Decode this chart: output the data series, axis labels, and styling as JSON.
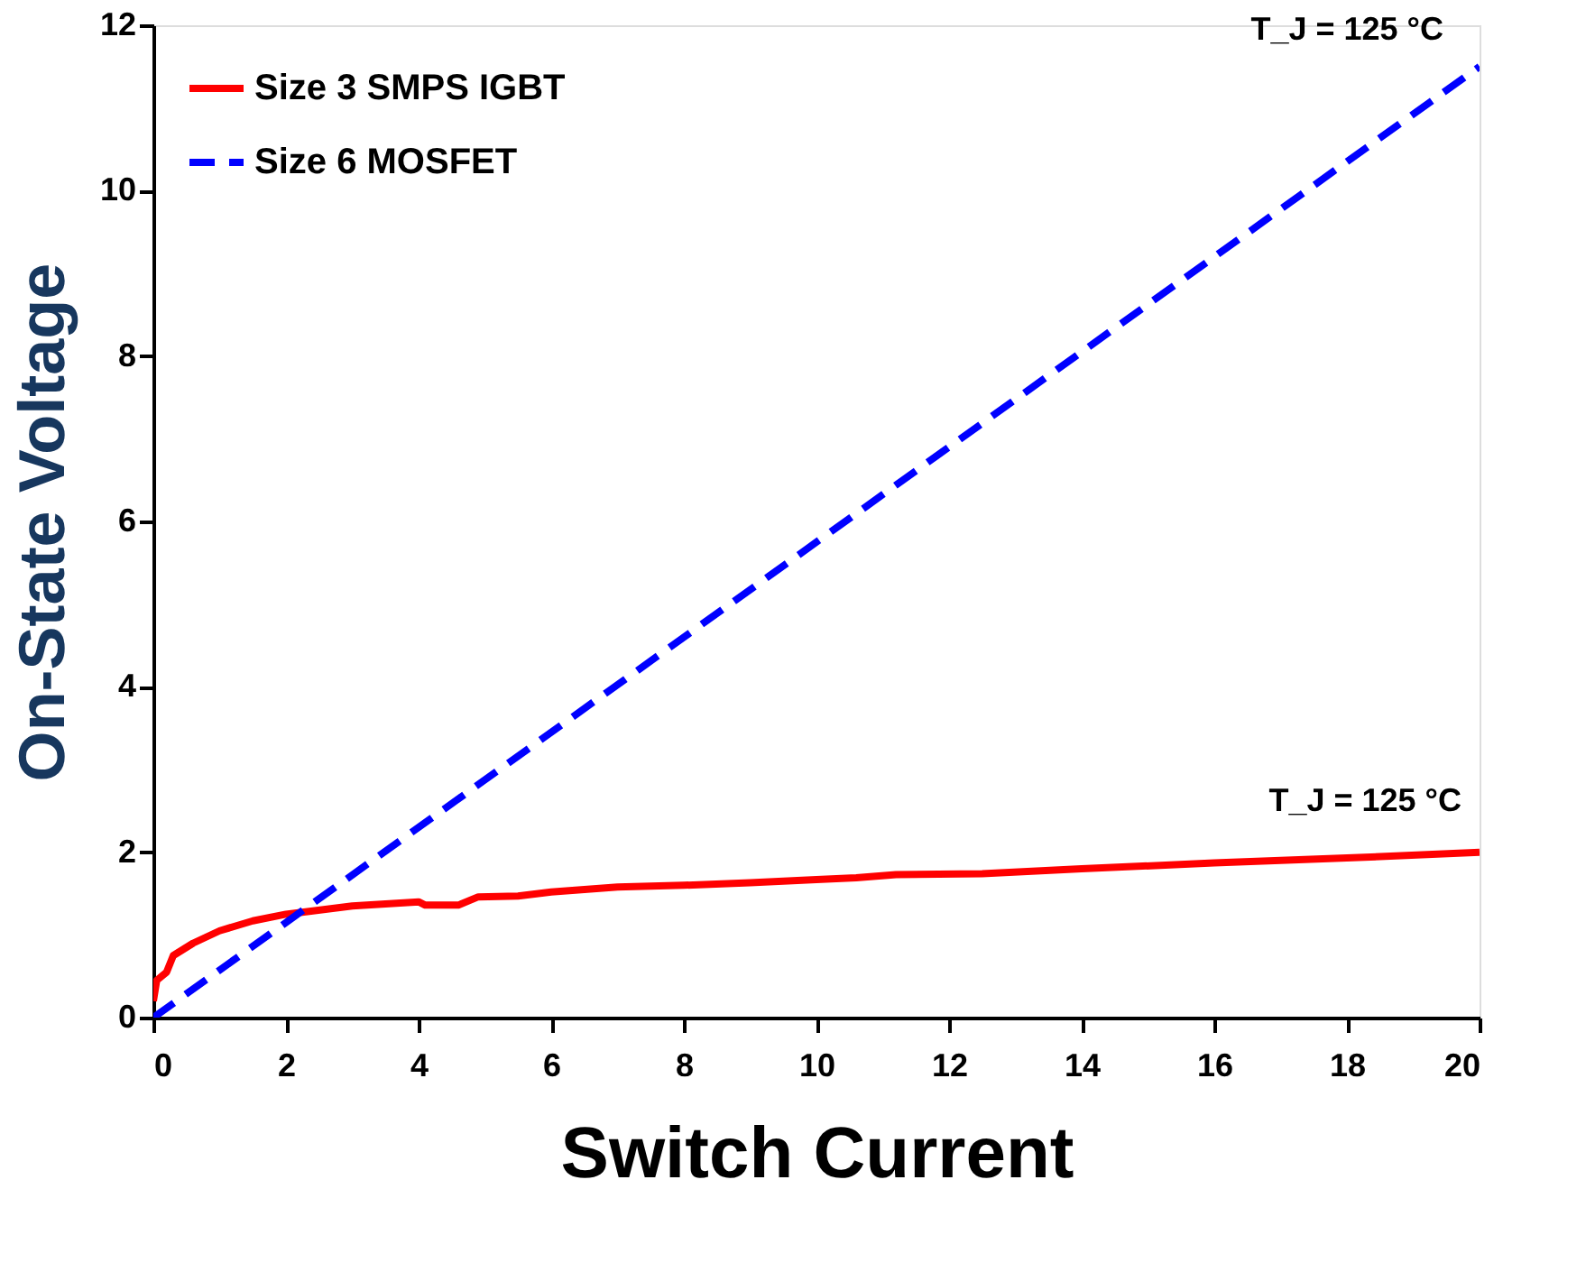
{
  "chart_data": {
    "type": "line",
    "xlabel": "Switch Current",
    "ylabel": "On-State Voltage",
    "xlim": [
      0,
      20
    ],
    "xticks": [
      0,
      2,
      4,
      6,
      8,
      10,
      12,
      14,
      16,
      18,
      20
    ],
    "ylim": [
      0,
      12
    ],
    "yticks": [
      0,
      2,
      4,
      6,
      8,
      10,
      12
    ],
    "grid": false,
    "legend": "top left",
    "marker": "none",
    "series": [
      {
        "name": "Size 3 SMPS IGBT",
        "color": "#ff0000",
        "line_style": "solid",
        "x": [
          0,
          0.05,
          0.2,
          0.3,
          0.6,
          1,
          1.5,
          2,
          3,
          4,
          4.1,
          4.6,
          4.9,
          5.5,
          6,
          7,
          8,
          9,
          10,
          10.6,
          11.2,
          12.5,
          14,
          16,
          18,
          20
        ],
        "values": [
          0.2,
          0.45,
          0.55,
          0.75,
          0.9,
          1.05,
          1.17,
          1.25,
          1.35,
          1.4,
          1.36,
          1.36,
          1.46,
          1.47,
          1.52,
          1.58,
          1.6,
          1.63,
          1.67,
          1.69,
          1.73,
          1.74,
          1.8,
          1.87,
          1.93,
          2.0
        ]
      },
      {
        "name": "Size 6 MOSFET",
        "color": "#0000ff",
        "line_style": "dashed",
        "x": [
          0,
          20
        ],
        "values": [
          0,
          11.5
        ]
      }
    ],
    "annotations": [
      "T_J = 125 °C",
      "T_J = 125 °C"
    ]
  }
}
